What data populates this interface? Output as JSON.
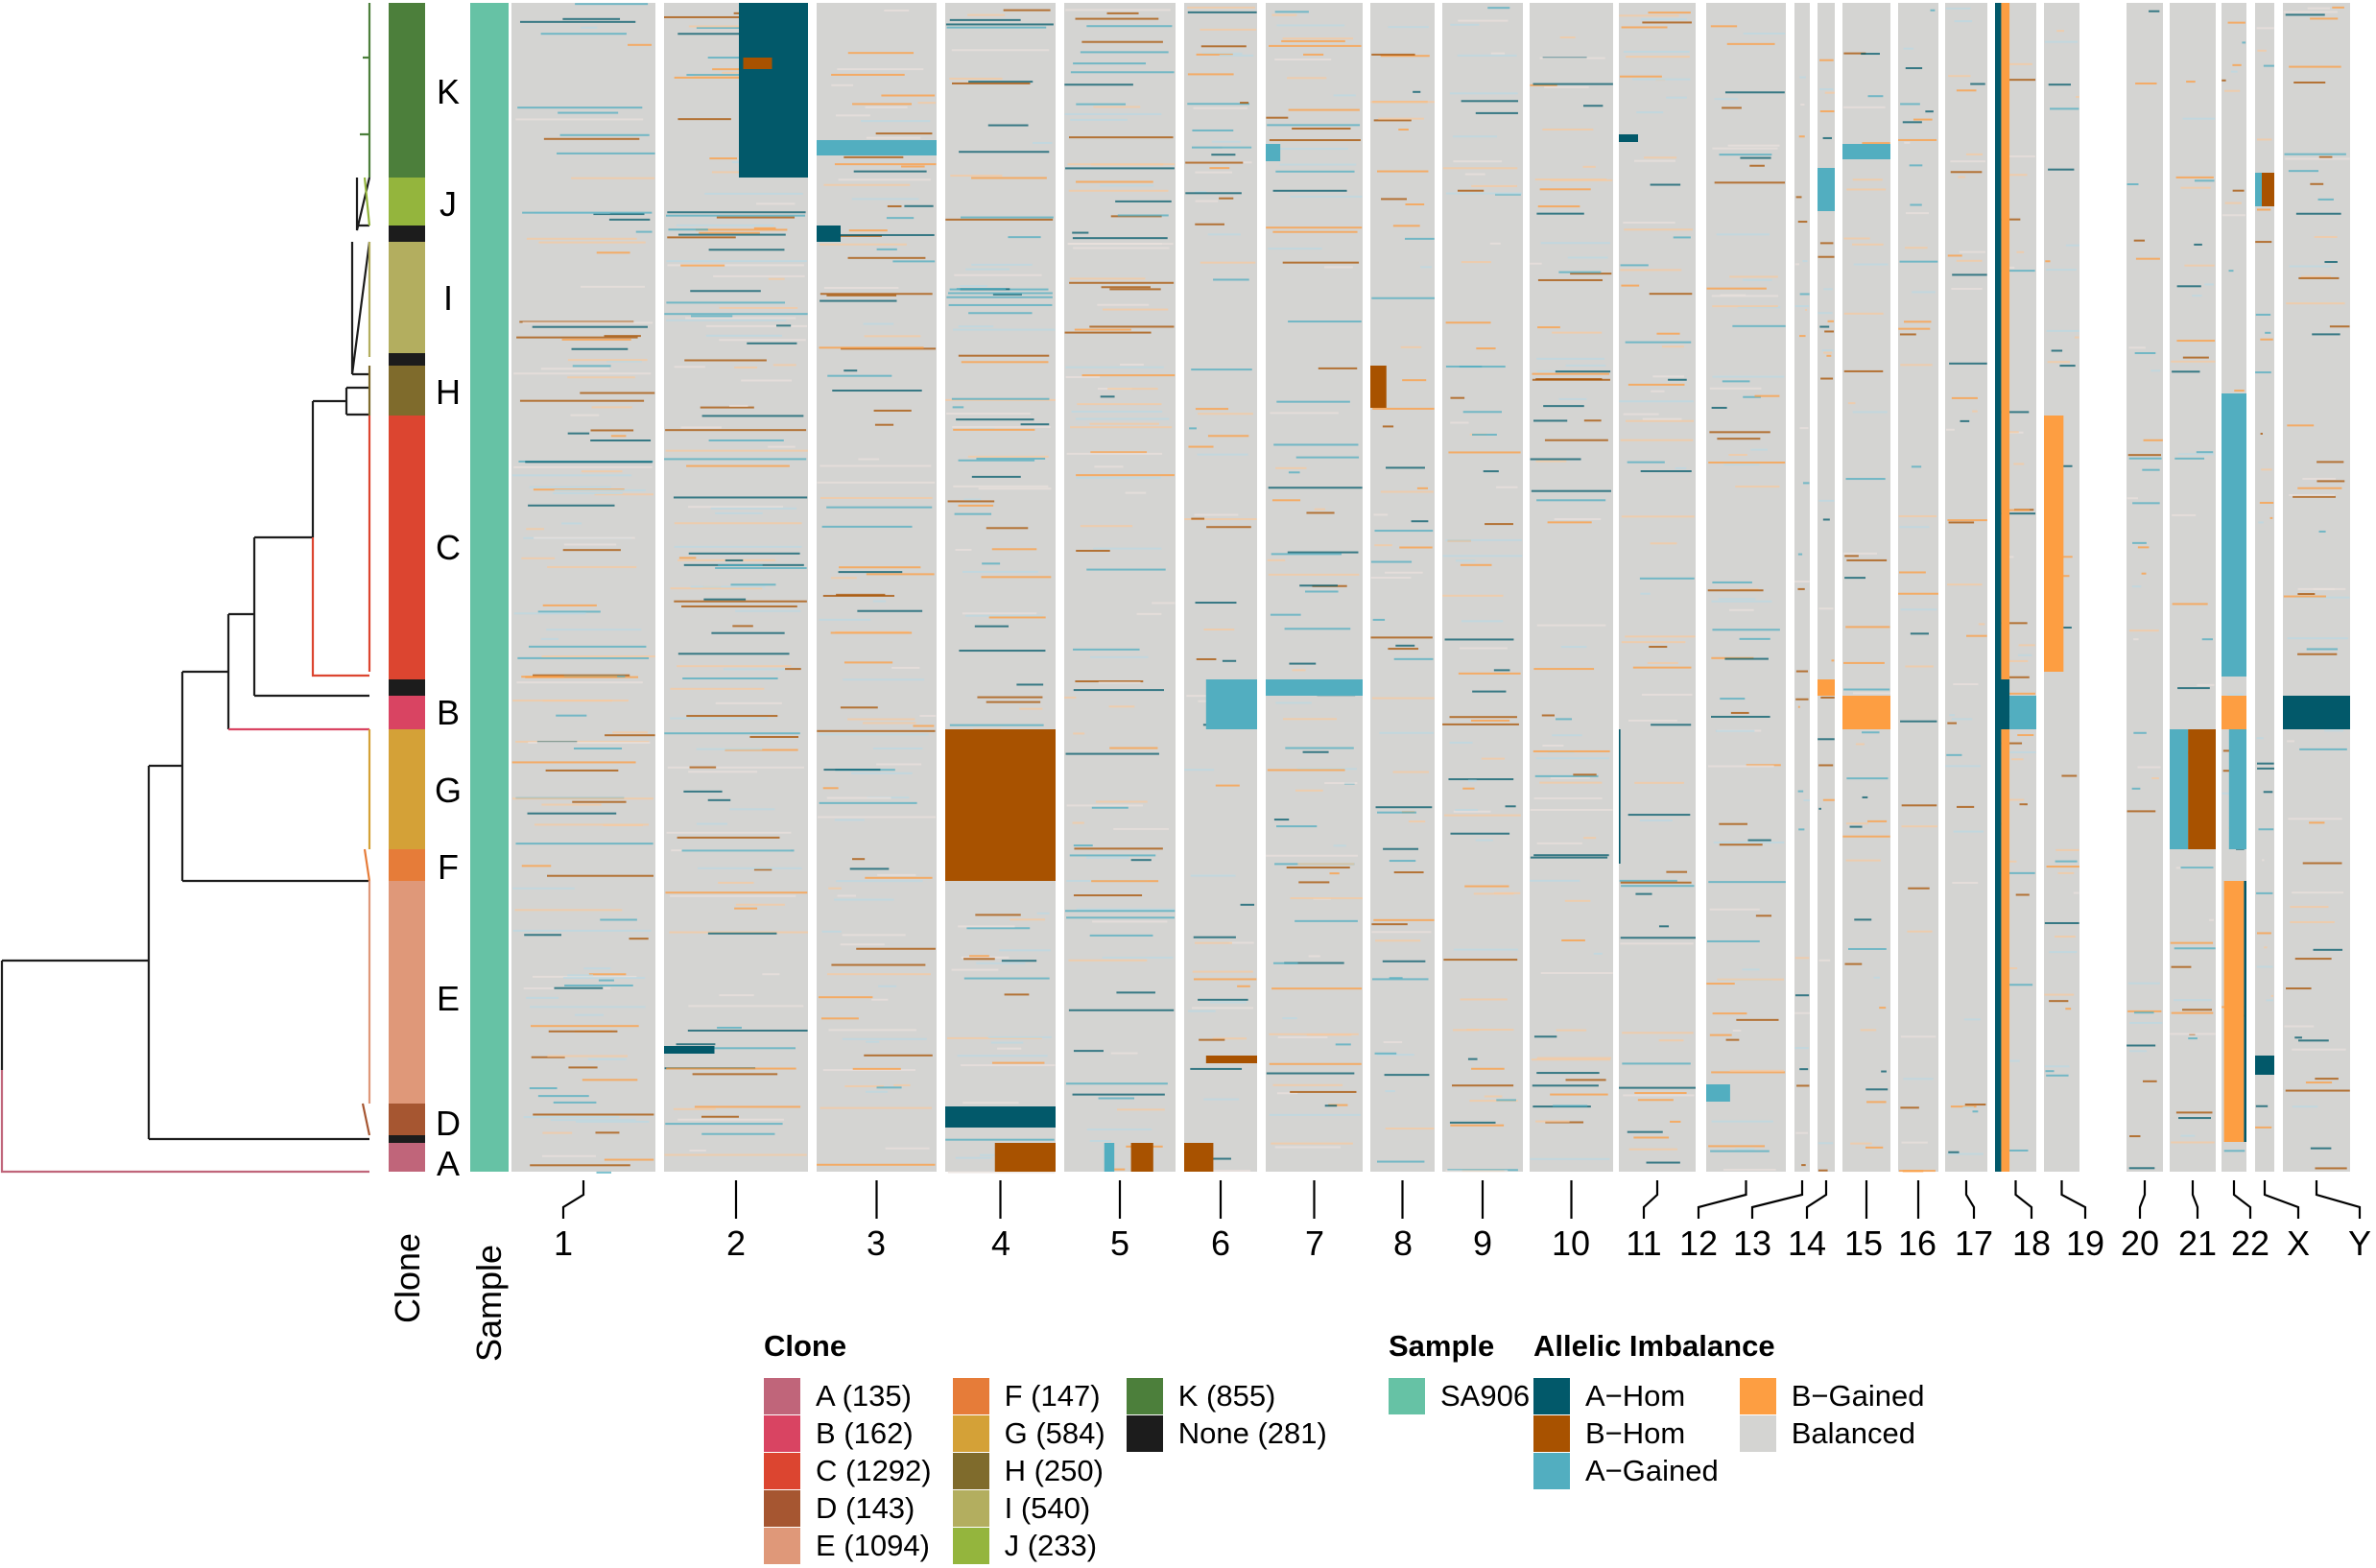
{
  "chart_data": {
    "type": "heatmap",
    "title": "",
    "description": "Single-cell allelic imbalance heatmap across chromosomes with clone dendrogram",
    "row_annotations": {
      "clone_axis_label": "Clone",
      "sample_axis_label": "Sample",
      "clone_order_top_to_bottom": [
        "K",
        "J",
        "None",
        "I",
        "None",
        "H",
        "C",
        "None",
        "B",
        "G",
        "F",
        "E",
        "D",
        "None",
        "A"
      ],
      "clone_labels_shown": [
        "K",
        "J",
        "I",
        "H",
        "C",
        "B",
        "G",
        "F",
        "E",
        "D",
        "A"
      ]
    },
    "x_categories": [
      "1",
      "2",
      "3",
      "4",
      "5",
      "6",
      "7",
      "8",
      "9",
      "10",
      "11",
      "12",
      "13",
      "14",
      "15",
      "16",
      "17",
      "18",
      "19",
      "20",
      "21",
      "22",
      "X",
      "Y"
    ],
    "legends": {
      "clone": {
        "title": "Clone",
        "items": [
          {
            "label": "A (135)",
            "clone": "A",
            "count": 135,
            "color": "#c0657a"
          },
          {
            "label": "B (162)",
            "clone": "B",
            "count": 162,
            "color": "#d94462"
          },
          {
            "label": "C (1292)",
            "clone": "C",
            "count": 1292,
            "color": "#dc4530"
          },
          {
            "label": "D (143)",
            "clone": "D",
            "count": 143,
            "color": "#a65631"
          },
          {
            "label": "E (1094)",
            "clone": "E",
            "count": 1094,
            "color": "#df9879"
          },
          {
            "label": "F (147)",
            "clone": "F",
            "count": 147,
            "color": "#e67c39"
          },
          {
            "label": "G (584)",
            "clone": "G",
            "count": 584,
            "color": "#d4a137"
          },
          {
            "label": "H (250)",
            "clone": "H",
            "count": 250,
            "color": "#7f6b2c"
          },
          {
            "label": "I (540)",
            "clone": "I",
            "count": 540,
            "color": "#b3ae5f"
          },
          {
            "label": "J (233)",
            "clone": "J",
            "count": 233,
            "color": "#94b53d"
          },
          {
            "label": "K (855)",
            "clone": "K",
            "count": 855,
            "color": "#4c7f3b"
          },
          {
            "label": "None (281)",
            "clone": "None",
            "count": 281,
            "color": "#1c1c1c"
          }
        ]
      },
      "sample": {
        "title": "Sample",
        "items": [
          {
            "label": "SA906",
            "color": "#66c2a5"
          }
        ]
      },
      "allelic_imbalance": {
        "title": "Allelic Imbalance",
        "items": [
          {
            "label": "A−Hom",
            "color": "#02596a"
          },
          {
            "label": "B−Hom",
            "color": "#a85200"
          },
          {
            "label": "A−Gained",
            "color": "#52aec0"
          },
          {
            "label": "B−Gained",
            "color": "#fd9e42"
          },
          {
            "label": "Balanced",
            "color": "#d4d4d2"
          }
        ]
      }
    },
    "notable_events": [
      {
        "chromosome": "2",
        "clone": "K",
        "state": "A-Hom",
        "arm": "q"
      },
      {
        "chromosome": "3",
        "clone": "K",
        "state": "A-Gained",
        "arm": "partial"
      },
      {
        "chromosome": "4",
        "clone": "G",
        "state": "B-Hom",
        "arm": "whole"
      },
      {
        "chromosome": "4",
        "clone": "A",
        "state": "B-Hom",
        "arm": "q"
      },
      {
        "chromosome": "5",
        "clone": "A",
        "state": "A-Gained",
        "arm": "focal"
      },
      {
        "chromosome": "6",
        "clone": "B",
        "state": "A-Gained",
        "arm": "p"
      },
      {
        "chromosome": "7",
        "clone": "B",
        "state": "A-Gained",
        "arm": "whole"
      },
      {
        "chromosome": "8",
        "clone": "H",
        "state": "B-Hom",
        "arm": "p"
      },
      {
        "chromosome": "15",
        "clone": "B",
        "state": "B-Gained",
        "arm": "whole"
      },
      {
        "chromosome": "17",
        "clone": "all",
        "state": "A-Hom / B-Gained",
        "arm": "p"
      },
      {
        "chromosome": "18",
        "clone": "C",
        "state": "B-Gained",
        "arm": "q"
      },
      {
        "chromosome": "20",
        "clone": "G",
        "state": "A-Gained / B-Hom",
        "arm": "whole"
      },
      {
        "chromosome": "21",
        "clone": "C",
        "state": "A-Gained",
        "arm": "whole"
      },
      {
        "chromosome": "21",
        "clone": "E",
        "state": "B-Gained",
        "arm": "whole"
      },
      {
        "chromosome": "22",
        "clone": "J",
        "state": "B-Hom",
        "arm": "focal"
      },
      {
        "chromosome": "X",
        "clone": "B",
        "state": "A-Hom",
        "arm": "q"
      }
    ]
  }
}
